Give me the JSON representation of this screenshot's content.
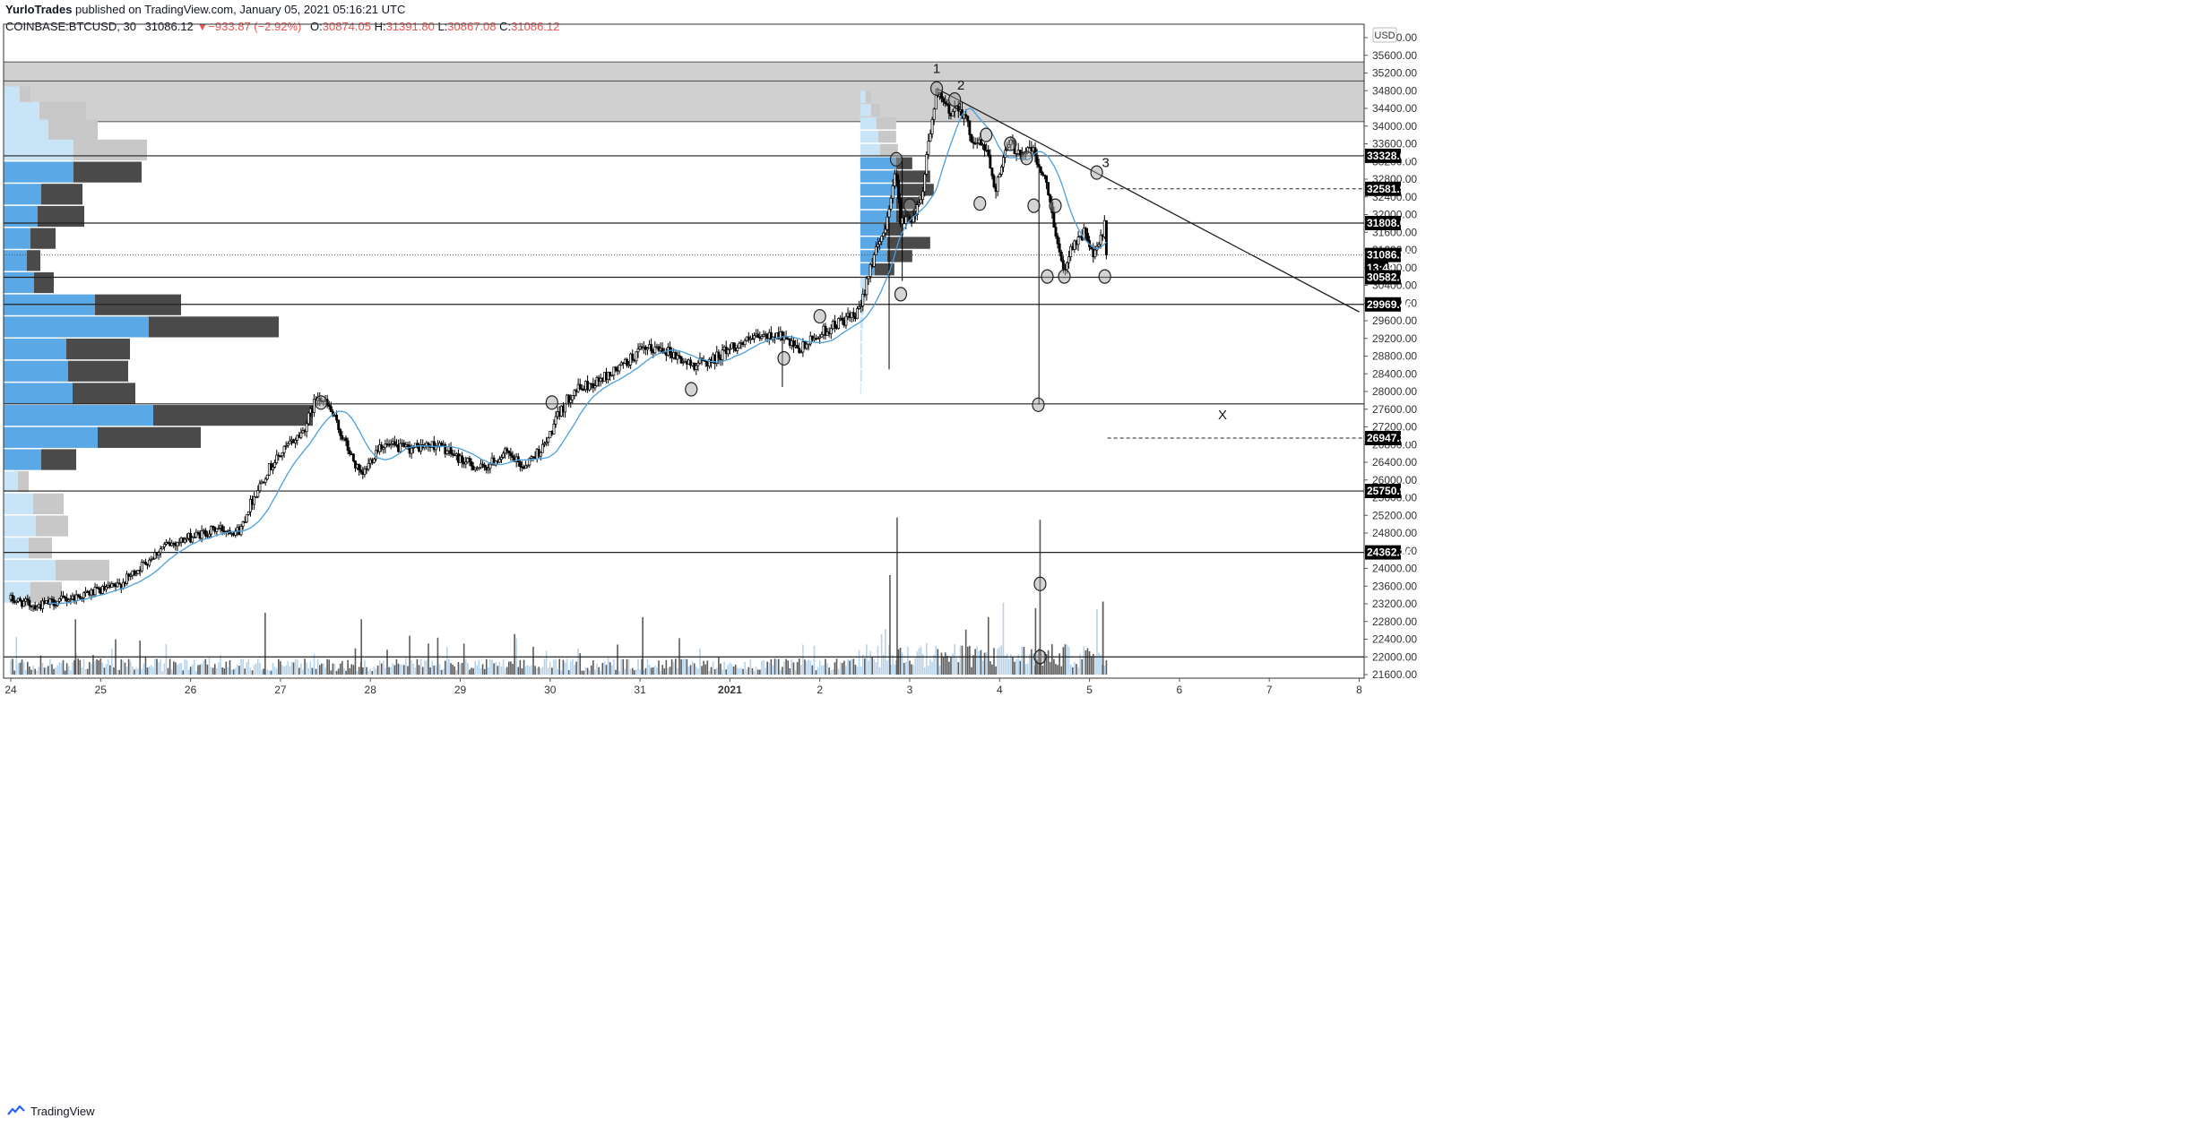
{
  "header": {
    "author": "YurloTrades",
    "published_text": " published on TradingView.com, January 05, 2021 05:16:21 UTC",
    "symbol": "COINBASE:BTCUSD, 30",
    "last_price": "31086.12",
    "change_arrow": "▼",
    "change": "−933.87 (−2.92%)",
    "o_label": "O:",
    "o_value": "30874.05",
    "h_label": "H:",
    "h_value": "31391.80",
    "l_label": "L:",
    "l_value": "30867.08",
    "c_label": "C:",
    "c_value": "31086.12"
  },
  "price_scale": {
    "currency": "USD",
    "ticks": [
      "36000.00",
      "35600.00",
      "35200.00",
      "34800.00",
      "34400.00",
      "34000.00",
      "33600.00",
      "33200.00",
      "32800.00",
      "32400.00",
      "32000.00",
      "31600.00",
      "31200.00",
      "30800.00",
      "30400.00",
      "30000.00",
      "29600.00",
      "29200.00",
      "28800.00",
      "28400.00",
      "28000.00",
      "27600.00",
      "27200.00",
      "26800.00",
      "26400.00",
      "26000.00",
      "25600.00",
      "25200.00",
      "24800.00",
      "24400.00",
      "24000.00",
      "23600.00",
      "23200.00",
      "22800.00",
      "22400.00",
      "22000.00",
      "21600.00"
    ],
    "labels": [
      {
        "text": "33328.03",
        "price": 33328.03,
        "style": "black"
      },
      {
        "text": "32581.90",
        "price": 32581.9,
        "style": "black"
      },
      {
        "text": "31808.01",
        "price": 31808.01,
        "style": "black"
      },
      {
        "text": "31086.12",
        "price": 31086.12,
        "style": "black"
      },
      {
        "text": "13:42",
        "price": 30800,
        "style": "black"
      },
      {
        "text": "30582.07",
        "price": 30582.07,
        "style": "black"
      },
      {
        "text": "29969.46",
        "price": 29969.46,
        "style": "black"
      },
      {
        "text": "26947.32",
        "price": 26947.32,
        "style": "black"
      },
      {
        "text": "25750.93",
        "price": 25750.93,
        "style": "black"
      },
      {
        "text": "24362.36",
        "price": 24362.36,
        "style": "black"
      }
    ]
  },
  "time_scale": {
    "ticks": [
      {
        "label": "24",
        "day": 0
      },
      {
        "label": "25",
        "day": 1
      },
      {
        "label": "26",
        "day": 2
      },
      {
        "label": "27",
        "day": 3
      },
      {
        "label": "28",
        "day": 4
      },
      {
        "label": "29",
        "day": 5
      },
      {
        "label": "30",
        "day": 6
      },
      {
        "label": "31",
        "day": 7
      },
      {
        "label": "2021",
        "day": 8,
        "bold": true
      },
      {
        "label": "2",
        "day": 9
      },
      {
        "label": "3",
        "day": 10
      },
      {
        "label": "4",
        "day": 11
      },
      {
        "label": "5",
        "day": 12
      },
      {
        "label": "6",
        "day": 13
      },
      {
        "label": "7",
        "day": 14
      },
      {
        "label": "8",
        "day": 15
      }
    ]
  },
  "annotations": [
    {
      "text": "1",
      "day": 10.3,
      "price": 35200
    },
    {
      "text": "2",
      "day": 10.57,
      "price": 34830
    },
    {
      "text": "3",
      "day": 12.18,
      "price": 33070
    },
    {
      "text": "X",
      "day": 13.48,
      "price": 27370
    }
  ],
  "footer": {
    "brand": "TradingView"
  },
  "colors": {
    "up": "#ffffff",
    "down": "#000000",
    "wick": "#000000",
    "ma": "#4a9fdc",
    "vp_up": "#5aa8e6",
    "vp_up_light": "#c9e4f7",
    "vp_down": "#4a4a4a",
    "vp_down_light": "#c8c8c8",
    "vol_up": "#b5d3ec",
    "vol_down": "#5a5a5a"
  },
  "chart_data": {
    "type": "candlestick",
    "symbol": "COINBASE:BTCUSD",
    "interval": "30",
    "x_unit": "days since 24 Dec 2020",
    "ylim": [
      21400,
      36200
    ],
    "xlim": [
      -0.05,
      15.05
    ],
    "price_path": [
      [
        0.0,
        23300
      ],
      [
        0.3,
        23150
      ],
      [
        0.6,
        23300
      ],
      [
        0.9,
        23450
      ],
      [
        1.2,
        23600
      ],
      [
        1.45,
        24050
      ],
      [
        1.7,
        24500
      ],
      [
        2.0,
        24700
      ],
      [
        2.3,
        24900
      ],
      [
        2.55,
        24850
      ],
      [
        2.65,
        25400
      ],
      [
        2.85,
        26200
      ],
      [
        3.05,
        26700
      ],
      [
        3.25,
        27100
      ],
      [
        3.42,
        27950
      ],
      [
        3.55,
        27600
      ],
      [
        3.75,
        26700
      ],
      [
        3.9,
        26050
      ],
      [
        4.1,
        26800
      ],
      [
        4.4,
        26700
      ],
      [
        4.75,
        26800
      ],
      [
        5.05,
        26400
      ],
      [
        5.25,
        26250
      ],
      [
        5.5,
        26600
      ],
      [
        5.7,
        26300
      ],
      [
        5.95,
        26800
      ],
      [
        6.1,
        27500
      ],
      [
        6.25,
        28000
      ],
      [
        6.5,
        28200
      ],
      [
        6.75,
        28500
      ],
      [
        7.0,
        28900
      ],
      [
        7.25,
        29000
      ],
      [
        7.55,
        28600
      ],
      [
        7.8,
        28700
      ],
      [
        8.0,
        29000
      ],
      [
        8.3,
        29200
      ],
      [
        8.55,
        29300
      ],
      [
        8.75,
        28900
      ],
      [
        9.0,
        29300
      ],
      [
        9.25,
        29600
      ],
      [
        9.4,
        29700
      ],
      [
        9.45,
        29850
      ],
      [
        9.55,
        30800
      ],
      [
        9.7,
        31500
      ],
      [
        9.85,
        33000
      ],
      [
        9.9,
        31800
      ],
      [
        10.05,
        32000
      ],
      [
        10.15,
        32600
      ],
      [
        10.2,
        33600
      ],
      [
        10.3,
        34700
      ],
      [
        10.45,
        34300
      ],
      [
        10.55,
        34500
      ],
      [
        10.7,
        33700
      ],
      [
        10.85,
        33500
      ],
      [
        10.95,
        32600
      ],
      [
        11.1,
        33600
      ],
      [
        11.25,
        33400
      ],
      [
        11.35,
        33500
      ],
      [
        11.5,
        32800
      ],
      [
        11.6,
        31900
      ],
      [
        11.7,
        30700
      ],
      [
        11.8,
        31300
      ],
      [
        11.95,
        31600
      ],
      [
        12.05,
        31000
      ],
      [
        12.15,
        31600
      ],
      [
        12.25,
        32600
      ],
      [
        12.3,
        32400
      ],
      [
        12.35,
        31600
      ],
      [
        12.2,
        31086
      ],
      [
        12.2,
        31086.12
      ]
    ],
    "candle_overrides": [
      {
        "day": 9.92,
        "high": 33300,
        "low": 30500
      },
      {
        "day": 11.44,
        "high": 33200,
        "low": 27700
      },
      {
        "day": 8.58,
        "high": 29150,
        "low": 28100
      },
      {
        "day": 9.78,
        "high": 29300,
        "low": 28500
      }
    ],
    "moving_average": "20-period simple moving average of close",
    "horizontal_lines": [
      33328.03,
      31808.01,
      30582.07,
      29969.46,
      27720,
      25750.93,
      24362.36,
      22000
    ],
    "dashed_lines": [
      {
        "price": 32581.9,
        "from_day": 12.2
      },
      {
        "price": 26947.32,
        "from_day": 12.2
      }
    ],
    "dotted_lines": [
      31086.12
    ],
    "zones": [
      {
        "from": 34100,
        "to": 35020
      },
      {
        "from": 35020,
        "to": 35450
      }
    ],
    "trendline": [
      [
        10.3,
        34850
      ],
      [
        15.0,
        29800
      ]
    ],
    "markers": [
      [
        10.3,
        34850
      ],
      [
        10.5,
        34600
      ],
      [
        10.85,
        33800
      ],
      [
        11.12,
        33600
      ],
      [
        11.3,
        33280
      ],
      [
        10.78,
        32250
      ],
      [
        9.85,
        33250
      ],
      [
        10.0,
        32200
      ],
      [
        9.9,
        30200
      ],
      [
        9.0,
        29700
      ],
      [
        8.6,
        28750
      ],
      [
        7.57,
        28050
      ],
      [
        6.02,
        27750
      ],
      [
        3.45,
        27750
      ],
      [
        11.38,
        32200
      ],
      [
        11.62,
        32200
      ],
      [
        12.08,
        32950
      ],
      [
        11.53,
        30600
      ],
      [
        11.72,
        30600
      ],
      [
        12.17,
        30600
      ],
      [
        11.43,
        27700
      ],
      [
        11.45,
        23650
      ],
      [
        11.45,
        22000
      ]
    ],
    "volume_profile_left": {
      "bins": [
        {
          "price": 34650,
          "up": 18,
          "down": 12
        },
        {
          "price": 34300,
          "up": 40,
          "down": 52
        },
        {
          "price": 33900,
          "up": 50,
          "down": 55
        },
        {
          "price": 33450,
          "up": 78,
          "down": 82
        },
        {
          "price": 32950,
          "up": 78,
          "down": 76
        },
        {
          "price": 32450,
          "up": 42,
          "down": 46
        },
        {
          "price": 31950,
          "up": 38,
          "down": 52
        },
        {
          "price": 31450,
          "up": 30,
          "down": 28
        },
        {
          "price": 30950,
          "up": 26,
          "down": 15
        },
        {
          "price": 30450,
          "up": 34,
          "down": 22
        },
        {
          "price": 29950,
          "up": 102,
          "down": 96
        },
        {
          "price": 29450,
          "up": 162,
          "down": 145
        },
        {
          "price": 28950,
          "up": 70,
          "down": 71
        },
        {
          "price": 28450,
          "up": 72,
          "down": 67
        },
        {
          "price": 27950,
          "up": 77,
          "down": 70
        },
        {
          "price": 27450,
          "up": 167,
          "down": 178
        },
        {
          "price": 26950,
          "up": 105,
          "down": 115
        },
        {
          "price": 26450,
          "up": 42,
          "down": 39
        },
        {
          "price": 25950,
          "up": 16,
          "down": 12
        },
        {
          "price": 25450,
          "up": 33,
          "down": 34
        },
        {
          "price": 24950,
          "up": 36,
          "down": 36
        },
        {
          "price": 24450,
          "up": 28,
          "down": 26
        },
        {
          "price": 23950,
          "up": 58,
          "down": 60
        },
        {
          "price": 23450,
          "up": 30,
          "down": 35
        }
      ],
      "bin_height": 490
    },
    "volume_profile_right": {
      "start_day": 9.45,
      "bins": [
        {
          "price": 34650,
          "up": 6,
          "down": 6
        },
        {
          "price": 34350,
          "up": 12,
          "down": 10
        },
        {
          "price": 34050,
          "up": 18,
          "down": 22
        },
        {
          "price": 33750,
          "up": 20,
          "down": 20
        },
        {
          "price": 33450,
          "up": 22,
          "down": 20
        },
        {
          "price": 33150,
          "up": 40,
          "down": 18
        },
        {
          "price": 32850,
          "up": 40,
          "down": 38
        },
        {
          "price": 32550,
          "up": 42,
          "down": 40
        },
        {
          "price": 32250,
          "up": 40,
          "down": 25
        },
        {
          "price": 31950,
          "up": 40,
          "down": 22
        },
        {
          "price": 31650,
          "up": 26,
          "down": 22
        },
        {
          "price": 31350,
          "up": 30,
          "down": 48
        },
        {
          "price": 31050,
          "up": 30,
          "down": 28
        },
        {
          "price": 30750,
          "up": 16,
          "down": 22
        },
        {
          "price": 30450,
          "up": 8,
          "down": 0
        },
        {
          "price": 30150,
          "up": 6,
          "down": 0
        },
        {
          "price": 29850,
          "up": 4,
          "down": 0
        },
        {
          "price": 29550,
          "up": 3,
          "down": 0
        },
        {
          "price": 29250,
          "up": 2,
          "down": 0
        },
        {
          "price": 28950,
          "up": 2,
          "down": 0
        },
        {
          "price": 28650,
          "up": 2,
          "down": 0
        },
        {
          "price": 28350,
          "up": 2,
          "down": 0
        },
        {
          "price": 28050,
          "up": 1,
          "down": 0
        }
      ],
      "bin_height": 290
    },
    "volume_spikes": [
      {
        "day": 9.78,
        "price": 23850
      },
      {
        "day": 9.86,
        "price": 25150
      },
      {
        "day": 11.45,
        "price": 25100
      },
      {
        "day": 0.72,
        "price": 22850
      },
      {
        "day": 3.9,
        "price": 22850
      },
      {
        "day": 7.03,
        "price": 22900
      },
      {
        "day": 2.83,
        "price": 23000
      },
      {
        "day": 11.4,
        "price": 23100
      },
      {
        "day": 12.15,
        "price": 23250
      },
      {
        "day": 12.15,
        "price": 23250
      }
    ]
  }
}
